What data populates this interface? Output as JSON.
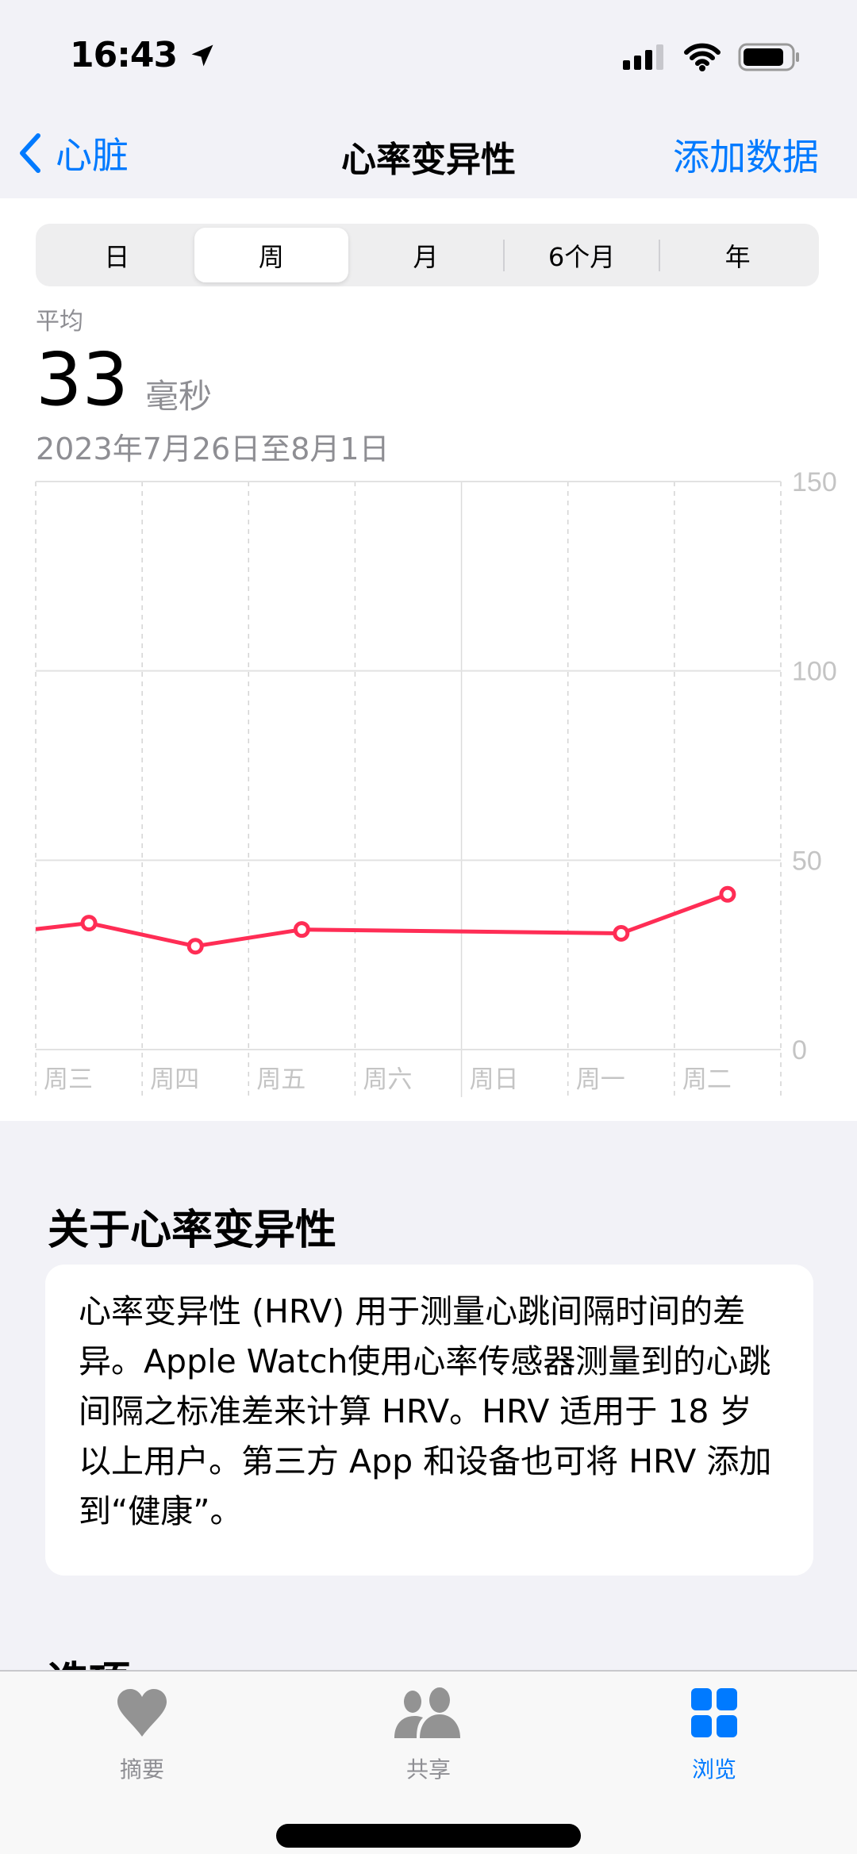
{
  "status_bar": {
    "time": "16:43",
    "icons": [
      "location-arrow-icon",
      "cellular-signal-icon",
      "wifi-icon",
      "battery-icon"
    ]
  },
  "nav": {
    "back_label": "心脏",
    "title": "心率变异性",
    "action_label": "添加数据"
  },
  "segments": {
    "items": [
      "日",
      "周",
      "月",
      "6个月",
      "年"
    ],
    "selected": "周"
  },
  "summary": {
    "label": "平均",
    "value": "33",
    "unit": "毫秒",
    "range": "2023年7月26日至8月1日"
  },
  "chart_data": {
    "type": "line",
    "categories": [
      "周三",
      "周四",
      "周五",
      "周六",
      "周日",
      "周一",
      "周二"
    ],
    "values": [
      33.4,
      27.3,
      31.7,
      null,
      null,
      30.7,
      41
    ],
    "lead_in_value": 31.8,
    "yticks": [
      0,
      50,
      100,
      150
    ],
    "ylim": [
      0,
      150
    ],
    "color": "#ff2d55",
    "grid": true
  },
  "about": {
    "title": "关于心率变异性",
    "text": "心率变异性 (HRV) 用于测量心跳间隔时间的差异。Apple Watch使用心率传感器测量到的心跳间隔之标准差来计算 HRV。HRV 适用于 18 岁以上用户。第三方 App 和设备也可将 HRV 添加到“健康”。"
  },
  "options_title": "选项",
  "tabs": [
    {
      "label": "摘要",
      "icon": "heart-icon"
    },
    {
      "label": "共享",
      "icon": "people-icon"
    },
    {
      "label": "浏览",
      "icon": "grid-icon",
      "active": true
    }
  ],
  "colors": {
    "accent": "#007aff",
    "series": "#ff2d55"
  }
}
